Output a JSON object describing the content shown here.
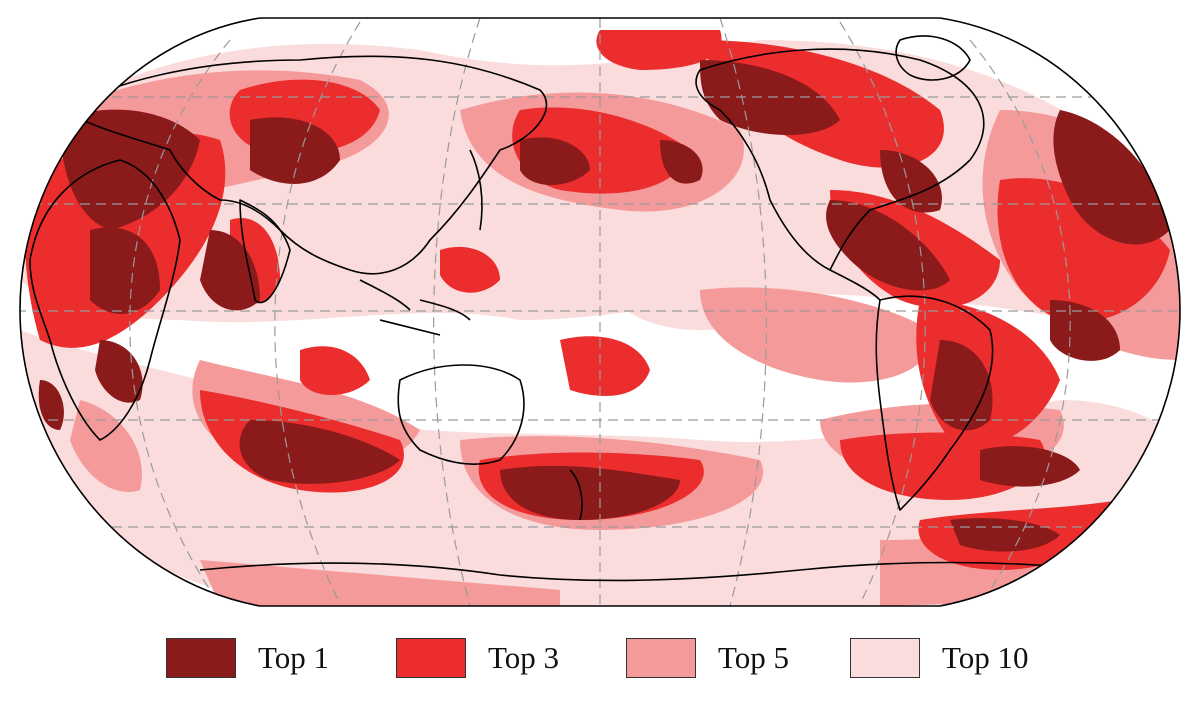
{
  "map": {
    "projection": "Robinson (Pacific-centered)",
    "graticule": "dashed",
    "palette": {
      "top1": "#8b1a1a",
      "top3": "#ec2d2d",
      "top5": "#f59a9a",
      "top10": "#fbdcdc",
      "outside": "#ffffff",
      "coastline": "#000000",
      "graticule": "#9a9a9a"
    }
  },
  "legend": {
    "items": [
      {
        "label": "Top 1",
        "color": "#8b1a1a"
      },
      {
        "label": "Top 3",
        "color": "#ec2d2d"
      },
      {
        "label": "Top 5",
        "color": "#f59a9a"
      },
      {
        "label": "Top 10",
        "color": "#fbdcdc"
      }
    ]
  }
}
